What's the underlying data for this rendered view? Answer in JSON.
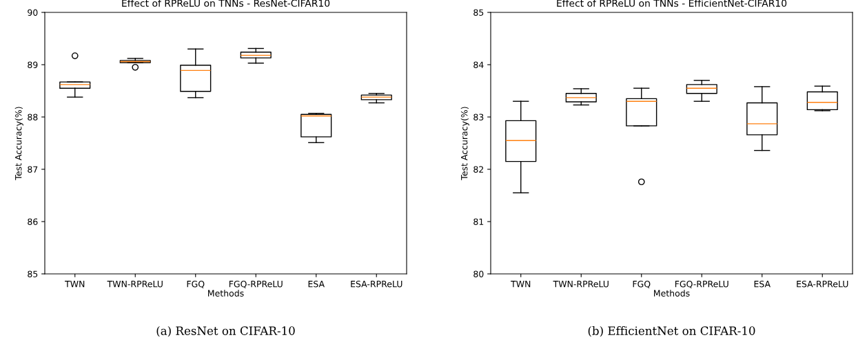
{
  "chart_data": [
    {
      "type": "box",
      "title": "Effect of RPReLU on TNNs - ResNet-CIFAR10",
      "xlabel": "Methods",
      "ylabel": "Test Accuracy(%)",
      "categories": [
        "TWN",
        "TWN-RPReLU",
        "FGQ",
        "FGQ-RPReLU",
        "ESA",
        "ESA-RPReLU"
      ],
      "boxes": [
        {
          "low": 88.38,
          "q1": 88.55,
          "median": 88.62,
          "q3": 88.67,
          "high": 88.67,
          "outliers": [
            89.17
          ]
        },
        {
          "low": 89.04,
          "q1": 89.04,
          "median": 89.06,
          "q3": 89.08,
          "high": 89.12,
          "outliers": [
            88.95
          ]
        },
        {
          "low": 88.37,
          "q1": 88.49,
          "median": 88.89,
          "q3": 88.99,
          "high": 89.3
        },
        {
          "low": 89.03,
          "q1": 89.13,
          "median": 89.18,
          "q3": 89.24,
          "high": 89.31
        },
        {
          "low": 87.51,
          "q1": 87.62,
          "median": 88.02,
          "q3": 88.05,
          "high": 88.07
        },
        {
          "low": 88.27,
          "q1": 88.33,
          "median": 88.38,
          "q3": 88.42,
          "high": 88.45
        }
      ],
      "ylim": [
        85,
        90
      ],
      "yticks": [
        85,
        86,
        87,
        88,
        89,
        90
      ],
      "grid": false,
      "annotations": [
        "(a) ResNet on CIFAR-10"
      ]
    },
    {
      "type": "box",
      "title": "Effect of RPReLU on TNNs - EfficientNet-CIFAR10",
      "xlabel": "Methods",
      "ylabel": "Test Accuracy(%)",
      "categories": [
        "TWN",
        "TWN-RPReLU",
        "FGQ",
        "FGQ-RPReLU",
        "ESA",
        "ESA-RPReLU"
      ],
      "boxes": [
        {
          "low": 81.55,
          "q1": 82.15,
          "median": 82.55,
          "q3": 82.93,
          "high": 83.3
        },
        {
          "low": 83.23,
          "q1": 83.29,
          "median": 83.37,
          "q3": 83.45,
          "high": 83.54
        },
        {
          "low": 82.83,
          "q1": 82.83,
          "median": 83.3,
          "q3": 83.35,
          "high": 83.55,
          "outliers": [
            81.76
          ]
        },
        {
          "low": 83.3,
          "q1": 83.45,
          "median": 83.55,
          "q3": 83.62,
          "high": 83.7
        },
        {
          "low": 82.36,
          "q1": 82.66,
          "median": 82.87,
          "q3": 83.27,
          "high": 83.58
        },
        {
          "low": 83.12,
          "q1": 83.14,
          "median": 83.28,
          "q3": 83.48,
          "high": 83.59
        }
      ],
      "ylim": [
        80,
        85
      ],
      "yticks": [
        80,
        81,
        82,
        83,
        84,
        85
      ],
      "grid": false,
      "annotations": [
        "(b) EfficientNet on CIFAR-10"
      ]
    }
  ]
}
